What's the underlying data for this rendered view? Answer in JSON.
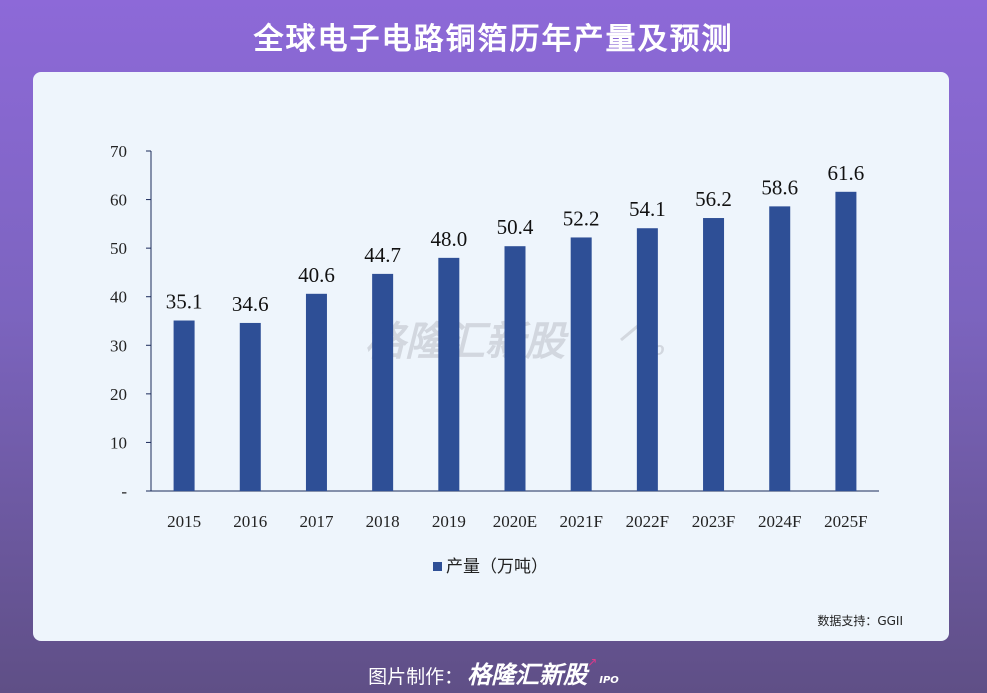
{
  "title": "全球电子电路铜箔历年产量及预测",
  "source": "数据支持：GGII",
  "footer": {
    "label": "图片制作：",
    "brand": "格隆汇新股",
    "ipo": "IPO"
  },
  "watermark": {
    "brand": "格隆汇新股",
    "ipo": "IPO"
  },
  "colors": {
    "bar": "#2e4f96",
    "axis": "#1a2a5a",
    "background": "#eef5fc"
  },
  "chart_data": {
    "type": "bar",
    "title": "",
    "xlabel": "",
    "ylabel": "",
    "categories": [
      "2015",
      "2016",
      "2017",
      "2018",
      "2019",
      "2020E",
      "2021F",
      "2022F",
      "2023F",
      "2024F",
      "2025F"
    ],
    "series": [
      {
        "name": "产量（万吨）",
        "values": [
          35.1,
          34.6,
          40.6,
          44.7,
          48.0,
          50.4,
          52.2,
          54.1,
          56.2,
          58.6,
          61.6
        ],
        "value_labels": [
          "35.1",
          "34.6",
          "40.6",
          "44.7",
          "48.0",
          "50.4",
          "52.2",
          "54.1",
          "56.2",
          "58.6",
          "61.6"
        ]
      }
    ],
    "ylim": [
      0,
      70
    ],
    "yticks": [
      {
        "value": 0,
        "label": "-"
      },
      {
        "value": 10,
        "label": "10"
      },
      {
        "value": 20,
        "label": "20"
      },
      {
        "value": 30,
        "label": "30"
      },
      {
        "value": 40,
        "label": "40"
      },
      {
        "value": 50,
        "label": "50"
      },
      {
        "value": 60,
        "label": "60"
      },
      {
        "value": 70,
        "label": "70"
      }
    ],
    "grid": false,
    "legend_position": "bottom-center"
  }
}
